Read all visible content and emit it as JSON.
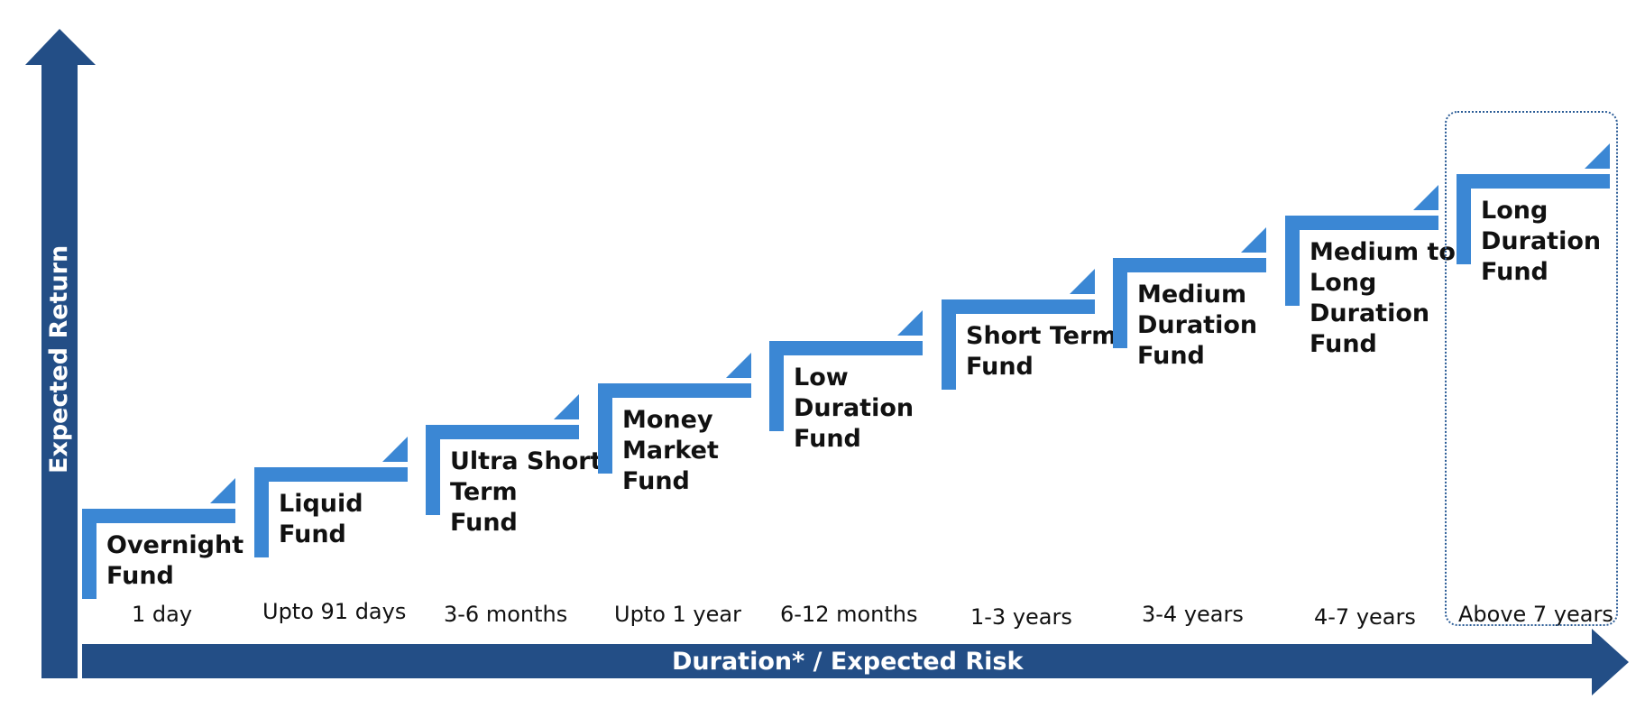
{
  "colors": {
    "axis": "#234e86",
    "step": "#3b87d4",
    "highlight_border": "#2b5c96",
    "text": "#111111",
    "axis_text": "#ffffff"
  },
  "axes": {
    "x_title": "Duration* / Expected Risk",
    "y_title": "Expected Return"
  },
  "steps": [
    {
      "name": [
        "Overnight",
        "Fund"
      ],
      "duration": "1 day"
    },
    {
      "name": [
        "Liquid",
        "Fund"
      ],
      "duration": "Upto 91 days"
    },
    {
      "name": [
        "Ultra Short",
        "Term",
        "Fund"
      ],
      "duration": "3-6 months"
    },
    {
      "name": [
        "Money",
        "Market",
        "Fund"
      ],
      "duration": "Upto 1 year"
    },
    {
      "name": [
        "Low",
        "Duration",
        "Fund"
      ],
      "duration": "6-12 months"
    },
    {
      "name": [
        "Short Term",
        "Fund"
      ],
      "duration": "1-3 years"
    },
    {
      "name": [
        "Medium",
        "Duration",
        "Fund"
      ],
      "duration": "3-4 years"
    },
    {
      "name": [
        "Medium to",
        "Long",
        "Duration",
        "Fund"
      ],
      "duration": "4-7 years"
    },
    {
      "name": [
        "Long",
        "Duration",
        "Fund"
      ],
      "duration": "Above 7 years",
      "highlighted": true
    }
  ]
}
